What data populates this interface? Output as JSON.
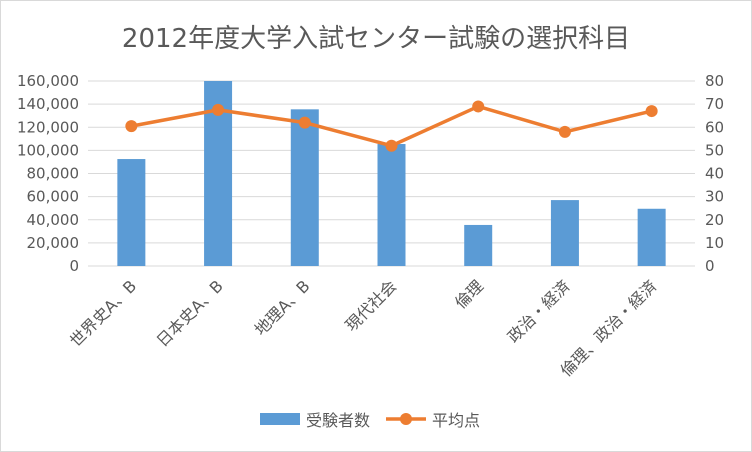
{
  "chart_data": {
    "type": "bar+line",
    "title": "2012年度大学入試センター試験の選択科目",
    "categories": [
      "世界史A、B",
      "日本史A、B",
      "地理A、B",
      "現代社会",
      "倫理",
      "政治・経済",
      "倫理、政治・経済"
    ],
    "series": [
      {
        "name": "受験者数",
        "type": "bar",
        "axis": "left",
        "color": "#5b9bd5",
        "values": [
          92500,
          160000,
          135500,
          105500,
          35500,
          57000,
          49500
        ]
      },
      {
        "name": "平均点",
        "type": "line",
        "axis": "right",
        "color": "#ed7d31",
        "values": [
          60.5,
          67.5,
          62,
          52,
          69,
          58,
          67
        ]
      }
    ],
    "ylim_left": [
      0,
      160000
    ],
    "ylim_right": [
      0,
      80
    ],
    "yticks_left": [
      "0",
      "20,000",
      "40,000",
      "60,000",
      "80,000",
      "100,000",
      "120,000",
      "140,000",
      "160,000"
    ],
    "yticks_right": [
      "0",
      "10",
      "20",
      "30",
      "40",
      "50",
      "60",
      "70",
      "80"
    ],
    "grid": true,
    "legend_position": "bottom"
  }
}
